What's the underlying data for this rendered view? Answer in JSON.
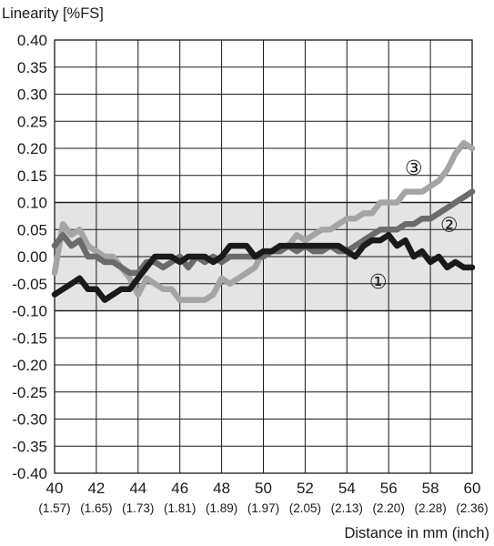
{
  "chart_data": {
    "type": "line",
    "ylabel": "Linearity [%FS]",
    "xlabel": "Distance in mm (inch)",
    "xlim": [
      40,
      60
    ],
    "ylim": [
      -0.4,
      0.4
    ],
    "x_ticks": [
      40,
      42,
      44,
      46,
      48,
      50,
      52,
      54,
      56,
      58,
      60
    ],
    "x_tick_labels": [
      "40",
      "42",
      "44",
      "46",
      "48",
      "50",
      "52",
      "54",
      "56",
      "58",
      "60"
    ],
    "x_sub_labels": [
      "(1.57)",
      "(1.65)",
      "(1.73)",
      "(1.81)",
      "(1.89)",
      "(1.97)",
      "(2.05)",
      "(2.13)",
      "(2.20)",
      "(2.28)",
      "(2.36)"
    ],
    "y_ticks": [
      0.4,
      0.35,
      0.3,
      0.25,
      0.2,
      0.15,
      0.1,
      0.05,
      0.0,
      -0.05,
      -0.1,
      -0.15,
      -0.2,
      -0.25,
      -0.3,
      -0.35,
      -0.4
    ],
    "y_tick_labels": [
      "0.40",
      "0.35",
      "0.30",
      "0.25",
      "0.20",
      "0.15",
      "0.10",
      "0.05",
      "0.00",
      "-0.05",
      "-0.10",
      "-0.15",
      "-0.20",
      "-0.25",
      "-0.30",
      "-0.35",
      "-0.40"
    ],
    "tolerance_band": [
      -0.1,
      0.1
    ],
    "grid": true,
    "colors": {
      "band": "#e4e4e4",
      "band_edge": "#a0a0a0",
      "grid": "#1a1a1a",
      "series_1": "#1a1a1a",
      "series_2": "#6b6b6b",
      "series_3": "#a5a5a5"
    },
    "series": [
      {
        "marker_label": "①",
        "color": "#1a1a1a",
        "x": [
          40,
          40.4,
          40.8,
          41.2,
          41.6,
          42.0,
          42.4,
          42.8,
          43.2,
          43.6,
          44.0,
          44.4,
          44.8,
          45.2,
          45.6,
          46.0,
          46.4,
          46.8,
          47.2,
          47.6,
          48.0,
          48.4,
          48.8,
          49.2,
          49.6,
          50.0,
          50.4,
          50.8,
          51.2,
          51.6,
          52.0,
          52.4,
          52.8,
          53.2,
          53.6,
          54.0,
          54.4,
          54.8,
          55.2,
          55.6,
          56.0,
          56.4,
          56.8,
          57.2,
          57.6,
          58.0,
          58.4,
          58.8,
          59.2,
          59.6,
          60.0
        ],
        "y": [
          -0.07,
          -0.06,
          -0.05,
          -0.04,
          -0.06,
          -0.06,
          -0.08,
          -0.07,
          -0.06,
          -0.06,
          -0.04,
          -0.02,
          0.0,
          0.0,
          0.0,
          -0.01,
          0.0,
          0.0,
          0.0,
          -0.01,
          0.0,
          0.02,
          0.02,
          0.02,
          0.0,
          0.01,
          0.01,
          0.02,
          0.02,
          0.02,
          0.02,
          0.02,
          0.02,
          0.02,
          0.02,
          0.01,
          0.0,
          0.02,
          0.03,
          0.03,
          0.04,
          0.02,
          0.03,
          0.0,
          0.01,
          -0.01,
          0.0,
          -0.02,
          -0.01,
          -0.02,
          -0.02
        ]
      },
      {
        "marker_label": "②",
        "color": "#6b6b6b",
        "x": [
          40,
          40.4,
          40.8,
          41.2,
          41.6,
          42.0,
          42.4,
          42.8,
          43.2,
          43.6,
          44.0,
          44.4,
          44.8,
          45.2,
          45.6,
          46.0,
          46.4,
          46.8,
          47.2,
          47.6,
          48.0,
          48.4,
          48.8,
          49.2,
          49.6,
          50.0,
          50.4,
          50.8,
          51.2,
          51.6,
          52.0,
          52.4,
          52.8,
          53.2,
          53.6,
          54.0,
          54.4,
          54.8,
          55.2,
          55.6,
          56.0,
          56.4,
          56.8,
          57.2,
          57.6,
          58.0,
          58.4,
          58.8,
          59.2,
          59.6,
          60.0
        ],
        "y": [
          0.02,
          0.04,
          0.02,
          0.03,
          0.0,
          0.0,
          -0.01,
          -0.01,
          -0.02,
          -0.03,
          -0.03,
          -0.01,
          -0.01,
          -0.02,
          -0.01,
          0.0,
          -0.02,
          0.0,
          -0.01,
          0.0,
          -0.01,
          0.0,
          0.0,
          0.0,
          0.0,
          0.0,
          0.01,
          0.01,
          0.02,
          0.01,
          0.02,
          0.01,
          0.01,
          0.02,
          0.01,
          0.01,
          0.02,
          0.03,
          0.04,
          0.05,
          0.05,
          0.05,
          0.06,
          0.06,
          0.07,
          0.07,
          0.08,
          0.09,
          0.1,
          0.11,
          0.12
        ]
      },
      {
        "marker_label": "③",
        "color": "#a5a5a5",
        "x": [
          40,
          40.4,
          40.8,
          41.2,
          41.6,
          42.0,
          42.4,
          42.8,
          43.2,
          43.6,
          44.0,
          44.4,
          44.8,
          45.2,
          45.6,
          46.0,
          46.4,
          46.8,
          47.2,
          47.6,
          48.0,
          48.4,
          48.8,
          49.2,
          49.6,
          50.0,
          50.4,
          50.8,
          51.2,
          51.6,
          52.0,
          52.4,
          52.8,
          53.2,
          53.6,
          54.0,
          54.4,
          54.8,
          55.2,
          55.6,
          56.0,
          56.4,
          56.8,
          57.2,
          57.6,
          58.0,
          58.4,
          58.8,
          59.2,
          59.6,
          60.0
        ],
        "y": [
          -0.03,
          0.06,
          0.04,
          0.05,
          0.02,
          0.01,
          0.0,
          0.0,
          -0.02,
          -0.04,
          -0.07,
          -0.04,
          -0.05,
          -0.06,
          -0.06,
          -0.08,
          -0.08,
          -0.08,
          -0.08,
          -0.07,
          -0.04,
          -0.05,
          -0.04,
          -0.03,
          -0.02,
          0.01,
          0.01,
          0.01,
          0.02,
          0.04,
          0.03,
          0.04,
          0.05,
          0.05,
          0.06,
          0.07,
          0.07,
          0.08,
          0.08,
          0.1,
          0.1,
          0.1,
          0.12,
          0.12,
          0.12,
          0.13,
          0.14,
          0.16,
          0.19,
          0.21,
          0.2
        ]
      }
    ]
  }
}
